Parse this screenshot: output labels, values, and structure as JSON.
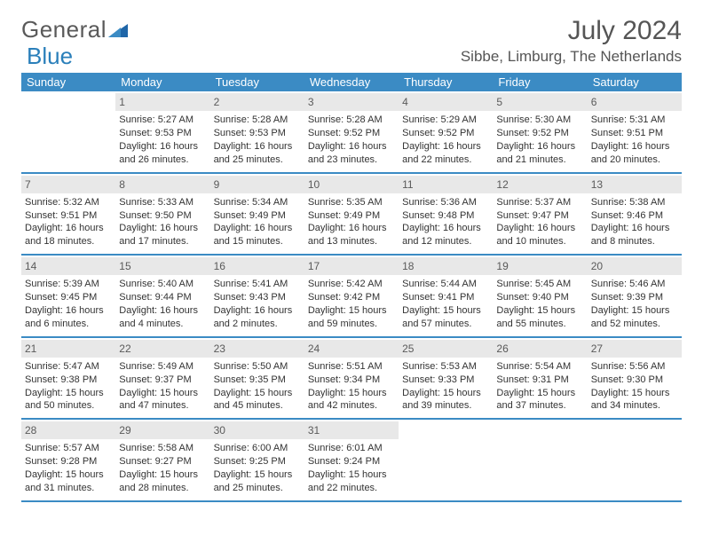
{
  "logo": {
    "word1": "General",
    "word2": "Blue"
  },
  "title": "July 2024",
  "location": "Sibbe, Limburg, The Netherlands",
  "day_headers": [
    "Sunday",
    "Monday",
    "Tuesday",
    "Wednesday",
    "Thursday",
    "Friday",
    "Saturday"
  ],
  "colors": {
    "header_bg": "#3b8bc4",
    "daynum_bg": "#e8e8e8",
    "text": "#333333",
    "logo_gray": "#5a5a5a",
    "logo_blue": "#2a7fba"
  },
  "weeks": [
    [
      {
        "blank": true
      },
      {
        "n": "1",
        "sunrise": "Sunrise: 5:27 AM",
        "sunset": "Sunset: 9:53 PM",
        "d1": "Daylight: 16 hours",
        "d2": "and 26 minutes."
      },
      {
        "n": "2",
        "sunrise": "Sunrise: 5:28 AM",
        "sunset": "Sunset: 9:53 PM",
        "d1": "Daylight: 16 hours",
        "d2": "and 25 minutes."
      },
      {
        "n": "3",
        "sunrise": "Sunrise: 5:28 AM",
        "sunset": "Sunset: 9:52 PM",
        "d1": "Daylight: 16 hours",
        "d2": "and 23 minutes."
      },
      {
        "n": "4",
        "sunrise": "Sunrise: 5:29 AM",
        "sunset": "Sunset: 9:52 PM",
        "d1": "Daylight: 16 hours",
        "d2": "and 22 minutes."
      },
      {
        "n": "5",
        "sunrise": "Sunrise: 5:30 AM",
        "sunset": "Sunset: 9:52 PM",
        "d1": "Daylight: 16 hours",
        "d2": "and 21 minutes."
      },
      {
        "n": "6",
        "sunrise": "Sunrise: 5:31 AM",
        "sunset": "Sunset: 9:51 PM",
        "d1": "Daylight: 16 hours",
        "d2": "and 20 minutes."
      }
    ],
    [
      {
        "n": "7",
        "sunrise": "Sunrise: 5:32 AM",
        "sunset": "Sunset: 9:51 PM",
        "d1": "Daylight: 16 hours",
        "d2": "and 18 minutes."
      },
      {
        "n": "8",
        "sunrise": "Sunrise: 5:33 AM",
        "sunset": "Sunset: 9:50 PM",
        "d1": "Daylight: 16 hours",
        "d2": "and 17 minutes."
      },
      {
        "n": "9",
        "sunrise": "Sunrise: 5:34 AM",
        "sunset": "Sunset: 9:49 PM",
        "d1": "Daylight: 16 hours",
        "d2": "and 15 minutes."
      },
      {
        "n": "10",
        "sunrise": "Sunrise: 5:35 AM",
        "sunset": "Sunset: 9:49 PM",
        "d1": "Daylight: 16 hours",
        "d2": "and 13 minutes."
      },
      {
        "n": "11",
        "sunrise": "Sunrise: 5:36 AM",
        "sunset": "Sunset: 9:48 PM",
        "d1": "Daylight: 16 hours",
        "d2": "and 12 minutes."
      },
      {
        "n": "12",
        "sunrise": "Sunrise: 5:37 AM",
        "sunset": "Sunset: 9:47 PM",
        "d1": "Daylight: 16 hours",
        "d2": "and 10 minutes."
      },
      {
        "n": "13",
        "sunrise": "Sunrise: 5:38 AM",
        "sunset": "Sunset: 9:46 PM",
        "d1": "Daylight: 16 hours",
        "d2": "and 8 minutes."
      }
    ],
    [
      {
        "n": "14",
        "sunrise": "Sunrise: 5:39 AM",
        "sunset": "Sunset: 9:45 PM",
        "d1": "Daylight: 16 hours",
        "d2": "and 6 minutes."
      },
      {
        "n": "15",
        "sunrise": "Sunrise: 5:40 AM",
        "sunset": "Sunset: 9:44 PM",
        "d1": "Daylight: 16 hours",
        "d2": "and 4 minutes."
      },
      {
        "n": "16",
        "sunrise": "Sunrise: 5:41 AM",
        "sunset": "Sunset: 9:43 PM",
        "d1": "Daylight: 16 hours",
        "d2": "and 2 minutes."
      },
      {
        "n": "17",
        "sunrise": "Sunrise: 5:42 AM",
        "sunset": "Sunset: 9:42 PM",
        "d1": "Daylight: 15 hours",
        "d2": "and 59 minutes."
      },
      {
        "n": "18",
        "sunrise": "Sunrise: 5:44 AM",
        "sunset": "Sunset: 9:41 PM",
        "d1": "Daylight: 15 hours",
        "d2": "and 57 minutes."
      },
      {
        "n": "19",
        "sunrise": "Sunrise: 5:45 AM",
        "sunset": "Sunset: 9:40 PM",
        "d1": "Daylight: 15 hours",
        "d2": "and 55 minutes."
      },
      {
        "n": "20",
        "sunrise": "Sunrise: 5:46 AM",
        "sunset": "Sunset: 9:39 PM",
        "d1": "Daylight: 15 hours",
        "d2": "and 52 minutes."
      }
    ],
    [
      {
        "n": "21",
        "sunrise": "Sunrise: 5:47 AM",
        "sunset": "Sunset: 9:38 PM",
        "d1": "Daylight: 15 hours",
        "d2": "and 50 minutes."
      },
      {
        "n": "22",
        "sunrise": "Sunrise: 5:49 AM",
        "sunset": "Sunset: 9:37 PM",
        "d1": "Daylight: 15 hours",
        "d2": "and 47 minutes."
      },
      {
        "n": "23",
        "sunrise": "Sunrise: 5:50 AM",
        "sunset": "Sunset: 9:35 PM",
        "d1": "Daylight: 15 hours",
        "d2": "and 45 minutes."
      },
      {
        "n": "24",
        "sunrise": "Sunrise: 5:51 AM",
        "sunset": "Sunset: 9:34 PM",
        "d1": "Daylight: 15 hours",
        "d2": "and 42 minutes."
      },
      {
        "n": "25",
        "sunrise": "Sunrise: 5:53 AM",
        "sunset": "Sunset: 9:33 PM",
        "d1": "Daylight: 15 hours",
        "d2": "and 39 minutes."
      },
      {
        "n": "26",
        "sunrise": "Sunrise: 5:54 AM",
        "sunset": "Sunset: 9:31 PM",
        "d1": "Daylight: 15 hours",
        "d2": "and 37 minutes."
      },
      {
        "n": "27",
        "sunrise": "Sunrise: 5:56 AM",
        "sunset": "Sunset: 9:30 PM",
        "d1": "Daylight: 15 hours",
        "d2": "and 34 minutes."
      }
    ],
    [
      {
        "n": "28",
        "sunrise": "Sunrise: 5:57 AM",
        "sunset": "Sunset: 9:28 PM",
        "d1": "Daylight: 15 hours",
        "d2": "and 31 minutes."
      },
      {
        "n": "29",
        "sunrise": "Sunrise: 5:58 AM",
        "sunset": "Sunset: 9:27 PM",
        "d1": "Daylight: 15 hours",
        "d2": "and 28 minutes."
      },
      {
        "n": "30",
        "sunrise": "Sunrise: 6:00 AM",
        "sunset": "Sunset: 9:25 PM",
        "d1": "Daylight: 15 hours",
        "d2": "and 25 minutes."
      },
      {
        "n": "31",
        "sunrise": "Sunrise: 6:01 AM",
        "sunset": "Sunset: 9:24 PM",
        "d1": "Daylight: 15 hours",
        "d2": "and 22 minutes."
      },
      {
        "blank": true
      },
      {
        "blank": true
      },
      {
        "blank": true
      }
    ]
  ]
}
